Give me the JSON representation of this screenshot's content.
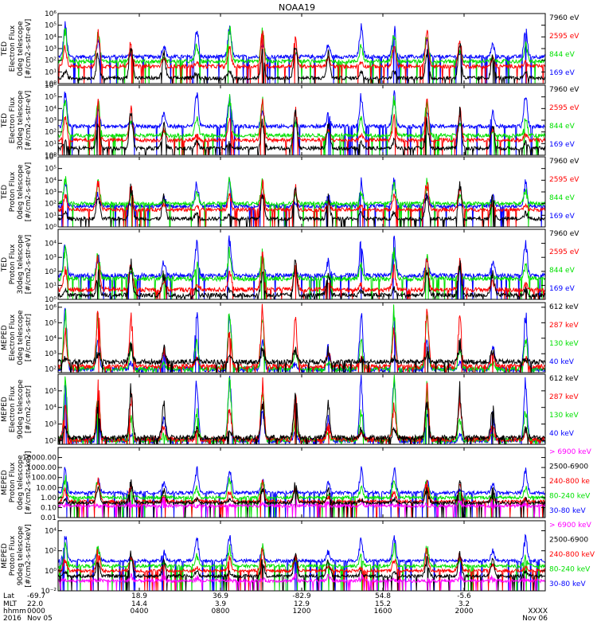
{
  "title": "NOAA19",
  "colors": {
    "black": "#000000",
    "red": "#ff0000",
    "green": "#00e000",
    "blue": "#0000ff",
    "magenta": "#ff00ff",
    "frame": "#000000"
  },
  "chart_data": [
    {
      "type": "line",
      "ylabel": [
        "TED",
        "Electron Flux",
        "0deg telescope",
        "[#/cm2-s-str-eV]"
      ],
      "scale": "log",
      "ylim": [
        1,
        1000000
      ],
      "yticks": [
        {
          "v": 1,
          "t": "10⁰"
        },
        {
          "v": 10,
          "t": "10¹"
        },
        {
          "v": 100,
          "t": "10²"
        },
        {
          "v": 1000,
          "t": "10³"
        },
        {
          "v": 10000,
          "t": "10⁴"
        },
        {
          "v": 100000,
          "t": "10⁵"
        },
        {
          "v": 1000000,
          "t": "10⁶"
        }
      ],
      "series": [
        {
          "name": "7960 eV",
          "color": "#000000",
          "base": 3,
          "peak": 3000
        },
        {
          "name": "2595 eV",
          "color": "#ff0000",
          "base": 30,
          "peak": 20000
        },
        {
          "name": "844 eV",
          "color": "#00e000",
          "base": 80,
          "peak": 50000
        },
        {
          "name": "169 eV",
          "color": "#0000ff",
          "base": 200,
          "peak": 100000
        }
      ]
    },
    {
      "type": "line",
      "ylabel": [
        "TED",
        "Electron Flux",
        "30deg telescope",
        "[#/cm2-s-str-eV]"
      ],
      "scale": "log",
      "ylim": [
        1,
        1000000
      ],
      "yticks": [
        {
          "v": 1,
          "t": "10⁰"
        },
        {
          "v": 10,
          "t": "10¹"
        },
        {
          "v": 100,
          "t": "10²"
        },
        {
          "v": 1000,
          "t": "10³"
        },
        {
          "v": 10000,
          "t": "10⁴"
        },
        {
          "v": 100000,
          "t": "10⁵"
        },
        {
          "v": 1000000,
          "t": "10⁶"
        }
      ],
      "series": [
        {
          "name": "7960 eV",
          "color": "#000000",
          "base": 4,
          "peak": 5000
        },
        {
          "name": "2595 eV",
          "color": "#ff0000",
          "base": 20,
          "peak": 30000
        },
        {
          "name": "844 eV",
          "color": "#00e000",
          "base": 50,
          "peak": 80000
        },
        {
          "name": "169 eV",
          "color": "#0000ff",
          "base": 300,
          "peak": 300000
        }
      ]
    },
    {
      "type": "line",
      "ylabel": [
        "TED",
        "Proton Flux",
        "0deg telescope",
        "[#/cm2-s-str-eV]"
      ],
      "scale": "log",
      "ylim": [
        1,
        1000000
      ],
      "yticks": [
        {
          "v": 1,
          "t": "10⁰"
        },
        {
          "v": 10,
          "t": "10¹"
        },
        {
          "v": 100,
          "t": "10²"
        },
        {
          "v": 1000,
          "t": "10³"
        },
        {
          "v": 10000,
          "t": "10⁴"
        },
        {
          "v": 100000,
          "t": "10⁵"
        },
        {
          "v": 1000000,
          "t": "10⁶"
        }
      ],
      "series": [
        {
          "name": "7960 eV",
          "color": "#000000",
          "base": 5,
          "peak": 3000
        },
        {
          "name": "2595 eV",
          "color": "#ff0000",
          "base": 30,
          "peak": 5000
        },
        {
          "name": "844 eV",
          "color": "#00e000",
          "base": 100,
          "peak": 10000
        },
        {
          "name": "169 eV",
          "color": "#0000ff",
          "base": 60,
          "peak": 10000
        }
      ]
    },
    {
      "type": "line",
      "ylabel": [
        "TED",
        "Proton Flux",
        "30deg telescope",
        "[#/cm2-s-str-eV]"
      ],
      "scale": "log",
      "ylim": [
        1,
        100000
      ],
      "yticks": [
        {
          "v": 1,
          "t": "10⁰"
        },
        {
          "v": 10,
          "t": "10¹"
        },
        {
          "v": 100,
          "t": "10²"
        },
        {
          "v": 1000,
          "t": "10³"
        },
        {
          "v": 10000,
          "t": "10⁴"
        }
      ],
      "series": [
        {
          "name": "7960 eV",
          "color": "#000000",
          "base": 2,
          "peak": 300
        },
        {
          "name": "2595 eV",
          "color": "#ff0000",
          "base": 5,
          "peak": 1000
        },
        {
          "name": "844 eV",
          "color": "#00e000",
          "base": 30,
          "peak": 3000
        },
        {
          "name": "169 eV",
          "color": "#0000ff",
          "base": 50,
          "peak": 20000
        }
      ]
    },
    {
      "type": "line",
      "ylabel": [
        "MEPED",
        "Electron Flux",
        "0deg telescope",
        "[#/cm2-s-str]"
      ],
      "scale": "log",
      "ylim": [
        60,
        2000000
      ],
      "yticks": [
        {
          "v": 100,
          "t": "10²"
        },
        {
          "v": 1000,
          "t": "10³"
        },
        {
          "v": 10000,
          "t": "10⁴"
        },
        {
          "v": 100000,
          "t": "10⁵"
        },
        {
          "v": 1000000,
          "t": "10⁶"
        }
      ],
      "series": [
        {
          "name": "612 keV",
          "color": "#000000",
          "base": 300,
          "peak": 3000
        },
        {
          "name": "287 keV",
          "color": "#ff0000",
          "base": 150,
          "peak": 1000000
        },
        {
          "name": "130 keV",
          "color": "#00e000",
          "base": 110,
          "peak": 800000
        },
        {
          "name": "40 keV",
          "color": "#0000ff",
          "base": 100,
          "peak": 1000000
        }
      ]
    },
    {
      "type": "line",
      "ylabel": [
        "MEPED",
        "Electron Flux",
        "90deg telescope",
        "[#/cm2-s-str]"
      ],
      "scale": "log",
      "ylim": [
        60,
        1000000
      ],
      "yticks": [
        {
          "v": 100,
          "t": "10²"
        },
        {
          "v": 1000,
          "t": "10³"
        },
        {
          "v": 10000,
          "t": "10⁴"
        },
        {
          "v": 100000,
          "t": "10⁵"
        }
      ],
      "series": [
        {
          "name": "612 keV",
          "color": "#000000",
          "base": 150,
          "peak": 100000
        },
        {
          "name": "287 keV",
          "color": "#ff0000",
          "base": 120,
          "peak": 200000
        },
        {
          "name": "130 keV",
          "color": "#00e000",
          "base": 110,
          "peak": 400000
        },
        {
          "name": "40 keV",
          "color": "#0000ff",
          "base": 100,
          "peak": 800000
        }
      ]
    },
    {
      "type": "line",
      "ylabel": [
        "MEPED",
        "Proton Flux",
        "0deg telescope",
        "[#/cm2-s-str-keV]"
      ],
      "scale": "log",
      "ylim": [
        0.01,
        100000
      ],
      "yticks": [
        {
          "v": 0.01,
          "t": "0.01"
        },
        {
          "v": 0.1,
          "t": "0.10"
        },
        {
          "v": 1,
          "t": "1.00"
        },
        {
          "v": 10,
          "t": "10.00"
        },
        {
          "v": 100,
          "t": "100.00"
        },
        {
          "v": 1000,
          "t": "1000.00"
        },
        {
          "v": 10000,
          "t": "10000.00"
        }
      ],
      "series": [
        {
          "name": "> 6900 keV",
          "color": "#ff00ff",
          "base": 0.15,
          "peak": 0.3
        },
        {
          "name": "2500-6900",
          "color": "#000000",
          "base": 0.3,
          "peak": 20
        },
        {
          "name": "240-800 ke",
          "color": "#ff0000",
          "base": 0.4,
          "peak": 30
        },
        {
          "name": "80-240 keV",
          "color": "#00e000",
          "base": 1,
          "peak": 100
        },
        {
          "name": "30-80 keV",
          "color": "#0000ff",
          "base": 3,
          "peak": 1000
        }
      ]
    },
    {
      "type": "line",
      "ylabel": [
        "MEPED",
        "Proton Flux",
        "90deg telescope",
        "[#/cm2-s-str-keV]"
      ],
      "scale": "log",
      "ylim": [
        0.01,
        100000
      ],
      "yticks": [
        {
          "v": 0.01,
          "t": "10⁻²"
        },
        {
          "v": 1,
          "t": "10⁰"
        },
        {
          "v": 100,
          "t": "10²"
        },
        {
          "v": 10000,
          "t": "10⁴"
        }
      ],
      "series": [
        {
          "name": "> 6900 keV",
          "color": "#ff00ff",
          "base": 0.1,
          "peak": 0.3
        },
        {
          "name": "2500-6900",
          "color": "#000000",
          "base": 0.3,
          "peak": 50
        },
        {
          "name": "240-800 keV",
          "color": "#ff0000",
          "base": 1,
          "peak": 100
        },
        {
          "name": "80-240 keV",
          "color": "#00e000",
          "base": 3,
          "peak": 300
        },
        {
          "name": "30-80 keV",
          "color": "#0000ff",
          "base": 10,
          "peak": 3000
        }
      ]
    }
  ],
  "x_axis": {
    "row_labels": [
      "Lat",
      "MLT",
      "hhmm",
      "2016"
    ],
    "ticks": [
      {
        "hour": 0,
        "lat": "-69.7",
        "mlt": "22.0",
        "hhmm": "0000",
        "date": "Nov 05"
      },
      {
        "hour": 4,
        "lat": "18.9",
        "mlt": "14.4",
        "hhmm": "0400",
        "date": ""
      },
      {
        "hour": 8,
        "lat": "36.9",
        "mlt": "3.9",
        "hhmm": "0800",
        "date": ""
      },
      {
        "hour": 12,
        "lat": "-82.9",
        "mlt": "12.9",
        "hhmm": "1200",
        "date": ""
      },
      {
        "hour": 16,
        "lat": "54.8",
        "mlt": "15.2",
        "hhmm": "1600",
        "date": ""
      },
      {
        "hour": 20,
        "lat": "-5.6",
        "mlt": "3.2",
        "hhmm": "2000",
        "date": ""
      },
      {
        "hour": 24,
        "lat": "",
        "mlt": "",
        "hhmm": "XXXX",
        "date": "Nov 06"
      }
    ]
  }
}
